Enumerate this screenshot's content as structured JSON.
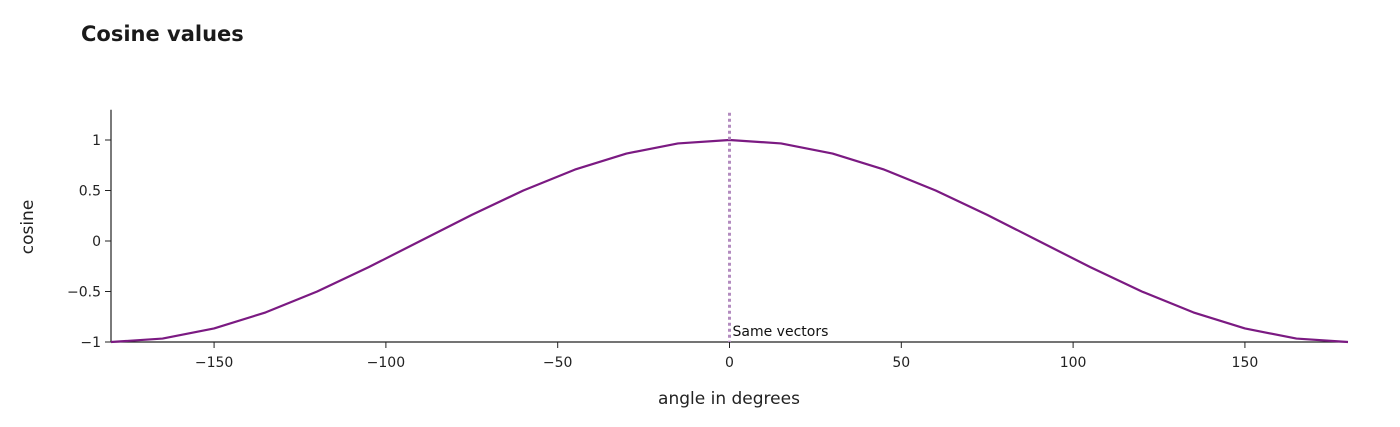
{
  "chart_data": {
    "type": "line",
    "title": "Cosine values",
    "xlabel": "angle in degrees",
    "ylabel": "cosine",
    "xlim": [
      -180,
      180
    ],
    "ylim": [
      -1,
      1.3
    ],
    "grid": false,
    "x_ticks": [
      -150,
      -100,
      -50,
      0,
      50,
      100,
      150
    ],
    "x_tick_labels": [
      "−150",
      "−100",
      "−50",
      "0",
      "50",
      "100",
      "150"
    ],
    "y_ticks": [
      -1,
      -0.5,
      0,
      0.5,
      1
    ],
    "y_tick_labels": [
      "−1",
      "−0.5",
      "0",
      "0.5",
      "1"
    ],
    "series": [
      {
        "color": "#7b1a82",
        "x": [
          -180,
          -165,
          -150,
          -135,
          -120,
          -105,
          -90,
          -75,
          -60,
          -45,
          -30,
          -15,
          0,
          15,
          30,
          45,
          60,
          75,
          90,
          105,
          120,
          135,
          150,
          165,
          180
        ],
        "y": [
          -1,
          -0.966,
          -0.866,
          -0.707,
          -0.5,
          -0.259,
          0,
          0.259,
          0.5,
          0.707,
          0.866,
          0.966,
          1,
          0.966,
          0.866,
          0.707,
          0.5,
          0.259,
          0,
          -0.259,
          -0.5,
          -0.707,
          -0.866,
          -0.966,
          -1
        ]
      }
    ],
    "annotations": [
      {
        "type": "vline",
        "x": 0,
        "style": "dotted",
        "color": "#b38bbf",
        "label": "Same vectors"
      }
    ]
  }
}
